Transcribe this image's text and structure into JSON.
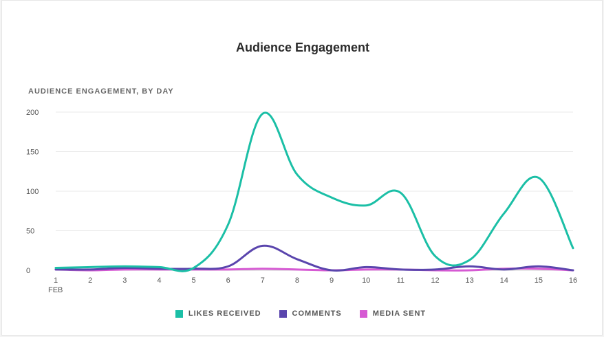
{
  "chart_data": {
    "type": "line",
    "title": "Audience Engagement",
    "subtitle": "AUDIENCE ENGAGEMENT, BY DAY",
    "x": [
      "1",
      "2",
      "3",
      "4",
      "5",
      "6",
      "7",
      "8",
      "9",
      "10",
      "11",
      "12",
      "13",
      "14",
      "15",
      "16"
    ],
    "x_sublabel": "FEB",
    "ylim": [
      0,
      200
    ],
    "yticks": [
      "0",
      "50",
      "100",
      "150",
      "200"
    ],
    "grid": true,
    "legend_position": "bottom",
    "series": [
      {
        "name": "LIKES RECEIVED",
        "color": "#1bbfa6",
        "values": [
          3,
          4,
          5,
          4,
          3,
          58,
          198,
          121,
          92,
          82,
          98,
          18,
          13,
          72,
          117,
          28
        ]
      },
      {
        "name": "COMMENTS",
        "color": "#5a45ad",
        "values": [
          1,
          1,
          3,
          2,
          2,
          5,
          31,
          14,
          0,
          4,
          1,
          1,
          5,
          1,
          5,
          0
        ]
      },
      {
        "name": "MEDIA SENT",
        "color": "#d65ad3",
        "values": [
          1,
          0,
          1,
          1,
          1,
          1,
          2,
          1,
          0,
          1,
          1,
          0,
          0,
          2,
          2,
          0
        ]
      }
    ]
  }
}
